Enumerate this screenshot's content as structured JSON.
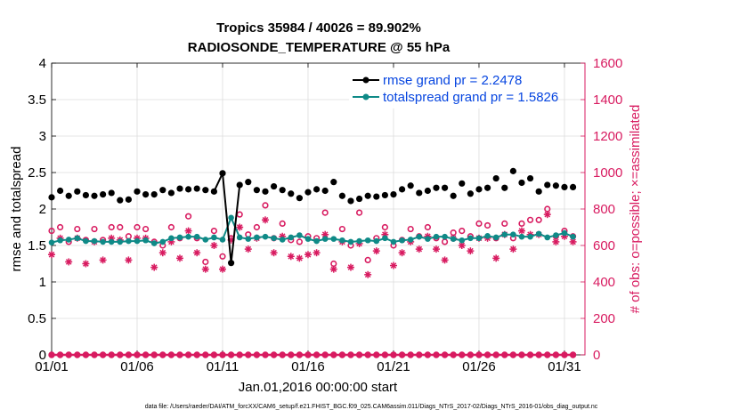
{
  "chart_data": {
    "type": "line",
    "title_line1": "Tropics 35984 / 40026 = 89.902%",
    "title_line2": "RADIOSONDE_TEMPERATURE @ 55 hPa",
    "xlabel": "Jan.01,2016 00:00:00 start",
    "ylabel_left": "rmse and totalspread",
    "ylabel_right": "# of obs: o=possible; ×=assimilated",
    "x_tick_labels": [
      "01/01",
      "01/06",
      "01/11",
      "01/16",
      "01/21",
      "01/26",
      "01/31"
    ],
    "x_tick_days": [
      1,
      6,
      11,
      16,
      21,
      26,
      31
    ],
    "xlim": [
      1,
      32.2
    ],
    "ylim_left": [
      0,
      4
    ],
    "y_ticks_left": [
      "0",
      "0.5",
      "1",
      "1.5",
      "2",
      "2.5",
      "3",
      "3.5",
      "4"
    ],
    "ylim_right": [
      0,
      1600
    ],
    "y_ticks_right": [
      "0",
      "200",
      "400",
      "600",
      "800",
      "1000",
      "1200",
      "1400",
      "1600"
    ],
    "grid": true,
    "legend_position": "top-right",
    "colors": {
      "rmse": "#000000",
      "spread": "#0f8a87",
      "right_axis": "#d81b60",
      "legend_text": "#0645e0"
    },
    "x": [
      1.0,
      1.5,
      2.0,
      2.5,
      3.0,
      3.5,
      4.0,
      4.5,
      5.0,
      5.5,
      6.0,
      6.5,
      7.0,
      7.5,
      8.0,
      8.5,
      9.0,
      9.5,
      10.0,
      10.5,
      11.0,
      11.5,
      12.0,
      12.5,
      13.0,
      13.5,
      14.0,
      14.5,
      15.0,
      15.5,
      16.0,
      16.5,
      17.0,
      17.5,
      18.0,
      18.5,
      19.0,
      19.5,
      20.0,
      20.5,
      21.0,
      21.5,
      22.0,
      22.5,
      23.0,
      23.5,
      24.0,
      24.5,
      25.0,
      25.5,
      26.0,
      26.5,
      27.0,
      27.5,
      28.0,
      28.5,
      29.0,
      29.5,
      30.0,
      30.5,
      31.0,
      31.5
    ],
    "series": [
      {
        "name": "rmse grand pr = 2.2478",
        "values": [
          2.16,
          2.25,
          2.18,
          2.24,
          2.19,
          2.18,
          2.2,
          2.22,
          2.12,
          2.13,
          2.24,
          2.2,
          2.2,
          2.26,
          2.22,
          2.28,
          2.27,
          2.28,
          2.26,
          2.24,
          2.49,
          1.26,
          2.33,
          2.37,
          2.26,
          2.24,
          2.31,
          2.26,
          2.21,
          2.15,
          2.23,
          2.27,
          2.25,
          2.37,
          2.18,
          2.11,
          2.14,
          2.18,
          2.17,
          2.19,
          2.2,
          2.27,
          2.32,
          2.22,
          2.25,
          2.29,
          2.29,
          2.18,
          2.35,
          2.21,
          2.27,
          2.29,
          2.42,
          2.29,
          2.52,
          2.36,
          2.42,
          2.24,
          2.33,
          2.32,
          2.3,
          2.3
        ]
      },
      {
        "name": "totalspread grand pr = 1.5826",
        "values": [
          1.54,
          1.57,
          1.58,
          1.6,
          1.56,
          1.56,
          1.55,
          1.55,
          1.55,
          1.56,
          1.56,
          1.57,
          1.53,
          1.55,
          1.6,
          1.61,
          1.62,
          1.62,
          1.58,
          1.61,
          1.58,
          1.88,
          1.61,
          1.59,
          1.61,
          1.62,
          1.6,
          1.58,
          1.61,
          1.64,
          1.59,
          1.56,
          1.59,
          1.59,
          1.57,
          1.55,
          1.56,
          1.57,
          1.56,
          1.6,
          1.55,
          1.57,
          1.58,
          1.62,
          1.59,
          1.62,
          1.62,
          1.59,
          1.57,
          1.6,
          1.6,
          1.63,
          1.61,
          1.65,
          1.65,
          1.62,
          1.62,
          1.66,
          1.61,
          1.64,
          1.67,
          1.62
        ]
      }
    ],
    "obs_possible": [
      680,
      700,
      620,
      690,
      630,
      690,
      630,
      700,
      700,
      650,
      700,
      690,
      620,
      600,
      700,
      640,
      760,
      640,
      510,
      680,
      540,
      640,
      770,
      660,
      700,
      820,
      640,
      720,
      630,
      620,
      650,
      640,
      780,
      500,
      690,
      600,
      780,
      520,
      640,
      700,
      600,
      630,
      690,
      650,
      700,
      640,
      620,
      670,
      680,
      650,
      720,
      710,
      640,
      720,
      640,
      720,
      740,
      740,
      800,
      650,
      680,
      650
    ],
    "obs_assimilated": [
      550,
      640,
      510,
      640,
      500,
      620,
      520,
      640,
      630,
      520,
      640,
      640,
      480,
      560,
      620,
      530,
      680,
      560,
      470,
      600,
      470,
      630,
      700,
      580,
      640,
      740,
      560,
      650,
      540,
      530,
      550,
      560,
      660,
      470,
      620,
      480,
      610,
      440,
      570,
      660,
      490,
      560,
      620,
      580,
      650,
      580,
      520,
      640,
      600,
      570,
      640,
      640,
      530,
      660,
      580,
      680,
      660,
      660,
      770,
      620,
      650,
      620
    ],
    "obs_zero_row_label": "0",
    "legend_rmse": "rmse grand pr = 2.2478",
    "legend_spread": "totalspread grand pr = 1.5826",
    "footnote": "data file: /Users/raeder/DAI/ATM_forcXX/CAM6_setup/f.e21.FHIST_BGC.f09_025.CAM6assim.011/Diags_NTrS_2017-02/Diags_NTrS_2016-01/obs_diag_output.nc"
  }
}
